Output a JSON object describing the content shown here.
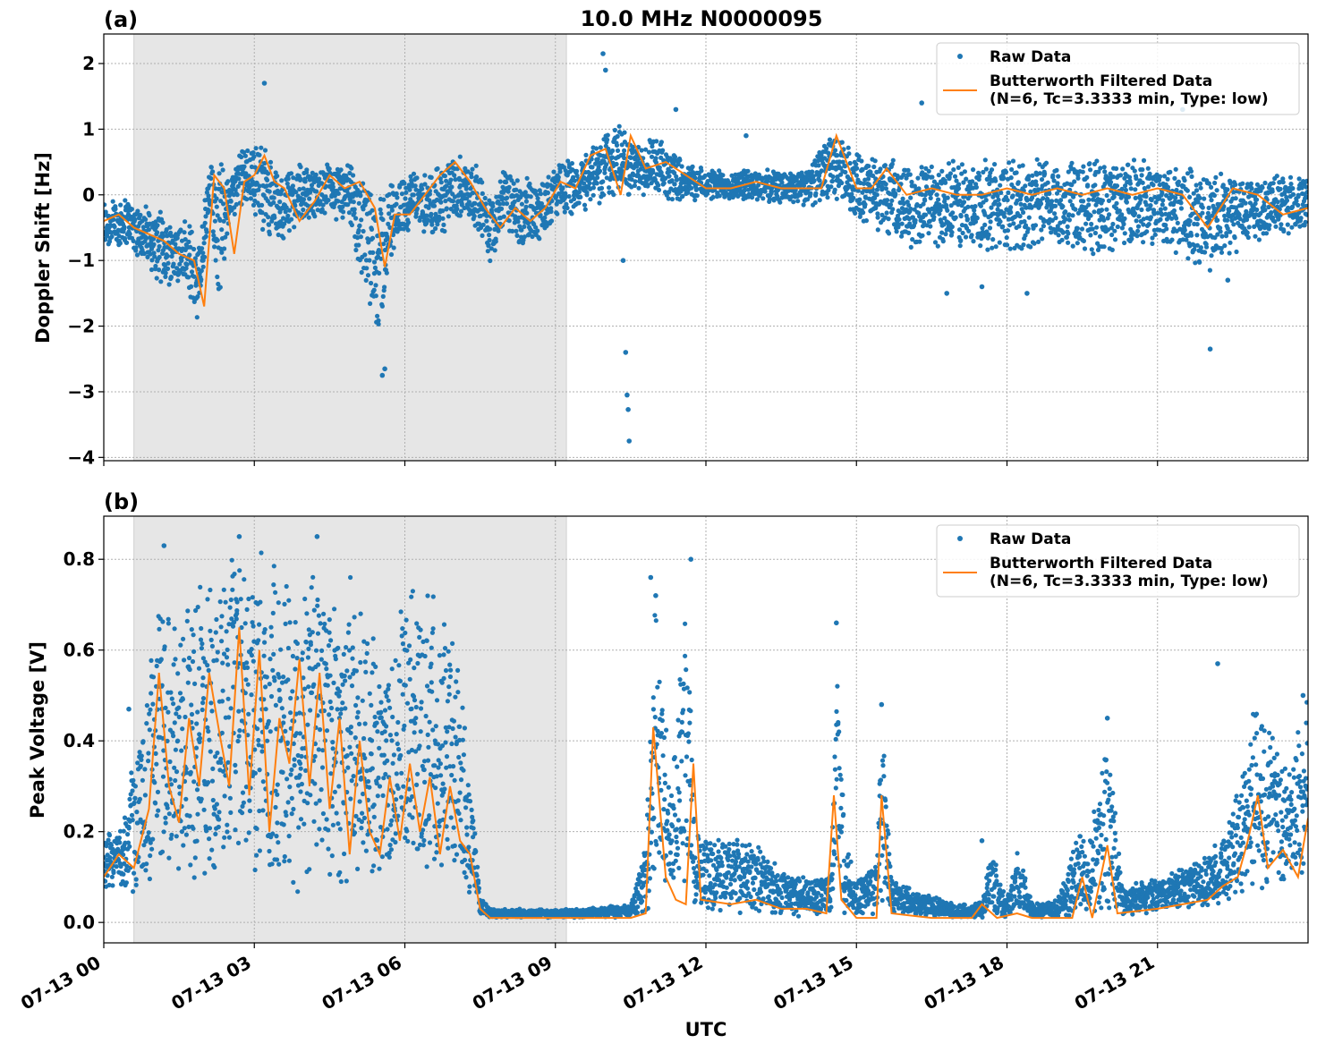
{
  "figure": {
    "title": "10.0 MHz N0000095",
    "xlabel": "UTC",
    "colors": {
      "raw": "#1f77b4",
      "filtered": "#ff7f0e",
      "shade": "#e6e6e6"
    }
  },
  "chart_data": [
    {
      "type": "scatter",
      "panel_label": "(a)",
      "title": "10.0 MHz N0000095",
      "xlabel": "",
      "ylabel": "Doppler Shift [Hz]",
      "x_unit": "hours UTC on 07-13",
      "xlim": [
        0,
        24
      ],
      "ylim": [
        -4.05,
        2.45
      ],
      "xticks": [
        0,
        3,
        6,
        9,
        12,
        15,
        18,
        21
      ],
      "xtick_labels": [
        "07-13 00",
        "07-13 03",
        "07-13 06",
        "07-13 09",
        "07-13 12",
        "07-13 15",
        "07-13 18",
        "07-13 21"
      ],
      "yticks": [
        2,
        1,
        0,
        -1,
        -2,
        -3,
        -4
      ],
      "ytick_labels": [
        "2",
        "1",
        "0",
        "−1",
        "−2",
        "−3",
        "−4"
      ],
      "shaded_region": [
        0.6,
        9.22
      ],
      "grid": true,
      "legend": {
        "position": "top-right",
        "entries": [
          {
            "label": "Raw Data",
            "kind": "marker"
          },
          {
            "label": "Butterworth Filtered Data",
            "label2": "(N=6, Tc=3.3333 min, Type: low)",
            "kind": "line"
          }
        ]
      },
      "series": [
        {
          "name": "Raw Data",
          "kind": "band",
          "x": [
            0.0,
            0.5,
            1.0,
            1.3,
            1.6,
            1.9,
            2.1,
            2.3,
            2.5,
            2.7,
            2.9,
            3.2,
            3.5,
            3.8,
            4.1,
            4.5,
            4.9,
            5.2,
            5.5,
            5.8,
            6.2,
            6.6,
            7.0,
            7.4,
            7.7,
            8.0,
            8.3,
            8.7,
            9.0,
            9.4,
            9.8,
            10.2,
            10.6,
            11.0,
            11.5,
            12.0,
            13.0,
            14.0,
            14.5,
            15.0,
            15.5,
            16.0,
            17.0,
            18.0,
            19.0,
            20.0,
            21.0,
            22.0,
            23.0,
            24.0
          ],
          "upper": [
            0.0,
            0.0,
            -0.2,
            -0.3,
            -0.3,
            -0.6,
            0.5,
            0.9,
            0.2,
            0.7,
            0.9,
            0.8,
            0.3,
            0.6,
            0.4,
            0.5,
            0.5,
            0.3,
            0.2,
            0.3,
            0.4,
            0.4,
            0.7,
            0.5,
            0.1,
            0.5,
            0.3,
            0.3,
            0.5,
            0.6,
            0.9,
            1.2,
            0.8,
            0.9,
            0.6,
            0.4,
            0.4,
            0.4,
            1.0,
            0.7,
            0.6,
            0.5,
            0.6,
            0.6,
            0.6,
            0.6,
            0.6,
            0.5,
            0.3,
            0.3
          ],
          "lower": [
            -0.9,
            -0.8,
            -1.3,
            -1.4,
            -1.5,
            -2.1,
            -0.5,
            -1.7,
            -0.4,
            -0.3,
            -0.2,
            -0.6,
            -0.8,
            -0.6,
            -0.4,
            -0.3,
            -0.6,
            -1.6,
            -2.3,
            -0.8,
            -0.5,
            -0.8,
            -0.4,
            -0.5,
            -1.1,
            -0.5,
            -0.9,
            -0.7,
            -0.4,
            -0.3,
            -0.2,
            -0.1,
            0.0,
            -0.1,
            -0.1,
            -0.1,
            -0.1,
            -0.2,
            -0.1,
            -0.4,
            -0.6,
            -0.8,
            -0.9,
            -0.9,
            -0.9,
            -0.9,
            -0.8,
            -1.3,
            -0.7,
            -0.6
          ],
          "outliers": [
            [
              3.2,
              1.7
            ],
            [
              5.55,
              -2.75
            ],
            [
              5.6,
              -2.65
            ],
            [
              9.95,
              2.15
            ],
            [
              10.0,
              1.9
            ],
            [
              10.35,
              -1.0
            ],
            [
              10.4,
              -2.4
            ],
            [
              10.43,
              -3.05
            ],
            [
              10.45,
              -3.27
            ],
            [
              10.47,
              -3.75
            ],
            [
              11.4,
              1.3
            ],
            [
              12.8,
              0.9
            ],
            [
              16.3,
              1.4
            ],
            [
              16.8,
              -1.5
            ],
            [
              17.5,
              -1.4
            ],
            [
              18.4,
              -1.5
            ],
            [
              21.5,
              1.3
            ],
            [
              22.05,
              -2.35
            ],
            [
              22.4,
              -1.3
            ]
          ]
        },
        {
          "name": "Butterworth Filtered Data",
          "kind": "line",
          "x": [
            0.0,
            0.3,
            0.6,
            0.9,
            1.2,
            1.5,
            1.8,
            2.0,
            2.2,
            2.4,
            2.6,
            2.8,
            3.0,
            3.2,
            3.4,
            3.6,
            3.9,
            4.2,
            4.5,
            4.8,
            5.1,
            5.4,
            5.6,
            5.8,
            6.1,
            6.4,
            6.7,
            7.0,
            7.3,
            7.6,
            7.9,
            8.2,
            8.5,
            8.8,
            9.1,
            9.4,
            9.7,
            10.0,
            10.3,
            10.5,
            10.8,
            11.2,
            11.6,
            12.0,
            12.5,
            13.0,
            13.5,
            14.0,
            14.3,
            14.6,
            15.0,
            15.3,
            15.6,
            16.0,
            16.5,
            17.0,
            17.5,
            18.0,
            18.5,
            19.0,
            19.5,
            20.0,
            20.5,
            21.0,
            21.5,
            22.0,
            22.5,
            23.0,
            23.5,
            24.0
          ],
          "y": [
            -0.4,
            -0.3,
            -0.5,
            -0.6,
            -0.7,
            -0.9,
            -1.0,
            -1.7,
            0.3,
            0.1,
            -0.9,
            0.2,
            0.3,
            0.6,
            0.2,
            0.1,
            -0.4,
            -0.1,
            0.3,
            0.1,
            0.2,
            -0.2,
            -1.1,
            -0.3,
            -0.3,
            0.0,
            0.3,
            0.5,
            0.2,
            -0.2,
            -0.5,
            -0.2,
            -0.4,
            -0.2,
            0.2,
            0.1,
            0.6,
            0.7,
            0.0,
            0.9,
            0.4,
            0.5,
            0.3,
            0.1,
            0.1,
            0.2,
            0.1,
            0.1,
            0.1,
            0.9,
            0.1,
            0.1,
            0.4,
            0.0,
            0.1,
            0.0,
            0.0,
            0.1,
            0.0,
            0.1,
            0.0,
            0.1,
            0.0,
            0.1,
            0.0,
            -0.5,
            0.1,
            0.0,
            -0.3,
            -0.2
          ]
        }
      ]
    },
    {
      "type": "scatter",
      "panel_label": "(b)",
      "xlabel": "UTC",
      "ylabel": "Peak Voltage [V]",
      "x_unit": "hours UTC on 07-13",
      "xlim": [
        0,
        24
      ],
      "ylim": [
        -0.045,
        0.895
      ],
      "xticks": [
        0,
        3,
        6,
        9,
        12,
        15,
        18,
        21
      ],
      "xtick_labels": [
        "07-13 00",
        "07-13 03",
        "07-13 06",
        "07-13 09",
        "07-13 12",
        "07-13 15",
        "07-13 18",
        "07-13 21"
      ],
      "yticks": [
        0.0,
        0.2,
        0.4,
        0.6,
        0.8
      ],
      "ytick_labels": [
        "0.0",
        "0.2",
        "0.4",
        "0.6",
        "0.8"
      ],
      "shaded_region": [
        0.6,
        9.22
      ],
      "grid": true,
      "legend": {
        "position": "top-right",
        "entries": [
          {
            "label": "Raw Data",
            "kind": "marker"
          },
          {
            "label": "Butterworth Filtered Data",
            "label2": "(N=6, Tc=3.3333 min, Type: low)",
            "kind": "line"
          }
        ]
      },
      "series": [
        {
          "name": "Raw Data",
          "kind": "band",
          "x": [
            0.0,
            0.4,
            0.6,
            0.8,
            1.1,
            1.4,
            1.7,
            2.0,
            2.3,
            2.6,
            3.0,
            3.4,
            3.8,
            4.2,
            4.6,
            5.0,
            5.4,
            5.7,
            6.0,
            6.4,
            6.8,
            7.1,
            7.35,
            7.5,
            7.7,
            8.5,
            9.5,
            10.5,
            10.8,
            11.0,
            11.3,
            11.6,
            11.8,
            12.3,
            13.0,
            13.5,
            14.0,
            14.5,
            14.6,
            14.8,
            15.0,
            15.4,
            15.5,
            15.7,
            16.5,
            17.0,
            17.5,
            17.7,
            18.0,
            18.2,
            18.5,
            19.0,
            19.5,
            19.6,
            20.0,
            20.3,
            21.0,
            22.0,
            22.5,
            23.0,
            23.5,
            24.0
          ],
          "upper": [
            0.2,
            0.22,
            0.4,
            0.45,
            0.82,
            0.68,
            0.77,
            0.82,
            0.78,
            0.84,
            0.83,
            0.84,
            0.8,
            0.84,
            0.82,
            0.75,
            0.62,
            0.6,
            0.77,
            0.78,
            0.76,
            0.55,
            0.28,
            0.06,
            0.03,
            0.03,
            0.03,
            0.04,
            0.18,
            0.76,
            0.3,
            0.79,
            0.2,
            0.2,
            0.18,
            0.12,
            0.1,
            0.12,
            0.65,
            0.2,
            0.1,
            0.15,
            0.48,
            0.1,
            0.06,
            0.04,
            0.05,
            0.18,
            0.05,
            0.17,
            0.05,
            0.05,
            0.24,
            0.15,
            0.45,
            0.08,
            0.1,
            0.15,
            0.25,
            0.55,
            0.35,
            0.5
          ],
          "lower": [
            0.07,
            0.08,
            0.05,
            0.07,
            0.08,
            0.12,
            0.07,
            0.09,
            0.06,
            0.1,
            0.08,
            0.06,
            0.05,
            0.06,
            0.04,
            0.07,
            0.08,
            0.07,
            0.05,
            0.09,
            0.08,
            0.06,
            0.05,
            0.02,
            0.01,
            0.01,
            0.01,
            0.01,
            0.02,
            0.05,
            0.03,
            0.03,
            0.02,
            0.02,
            0.02,
            0.01,
            0.01,
            0.01,
            0.02,
            0.01,
            0.01,
            0.01,
            0.01,
            0.01,
            0.01,
            0.01,
            0.01,
            0.01,
            0.01,
            0.01,
            0.01,
            0.01,
            0.01,
            0.01,
            0.01,
            0.01,
            0.02,
            0.03,
            0.04,
            0.06,
            0.05,
            0.08
          ],
          "outliers": [
            [
              0.5,
              0.47
            ],
            [
              1.2,
              0.83
            ],
            [
              2.7,
              0.85
            ],
            [
              4.25,
              0.85
            ],
            [
              10.9,
              0.76
            ],
            [
              11.0,
              0.72
            ],
            [
              11.7,
              0.8
            ],
            [
              14.6,
              0.66
            ],
            [
              15.5,
              0.48
            ],
            [
              17.5,
              0.18
            ],
            [
              20.0,
              0.45
            ],
            [
              22.2,
              0.57
            ],
            [
              23.9,
              0.5
            ]
          ]
        },
        {
          "name": "Butterworth Filtered Data",
          "kind": "line",
          "x": [
            0.0,
            0.3,
            0.6,
            0.9,
            1.1,
            1.3,
            1.5,
            1.7,
            1.9,
            2.1,
            2.3,
            2.5,
            2.7,
            2.9,
            3.1,
            3.3,
            3.5,
            3.7,
            3.9,
            4.1,
            4.3,
            4.5,
            4.7,
            4.9,
            5.1,
            5.3,
            5.5,
            5.7,
            5.9,
            6.1,
            6.3,
            6.5,
            6.7,
            6.9,
            7.1,
            7.3,
            7.5,
            7.7,
            8.5,
            9.5,
            10.5,
            10.8,
            10.95,
            11.2,
            11.4,
            11.6,
            11.75,
            11.9,
            12.5,
            13.0,
            13.5,
            14.0,
            14.4,
            14.55,
            14.7,
            15.0,
            15.4,
            15.5,
            15.7,
            16.5,
            17.3,
            17.5,
            17.8,
            18.2,
            18.5,
            19.3,
            19.5,
            19.7,
            20.0,
            20.2,
            21.0,
            22.0,
            22.3,
            22.6,
            22.8,
            23.0,
            23.2,
            23.5,
            23.8,
            24.0
          ],
          "y": [
            0.1,
            0.15,
            0.12,
            0.25,
            0.55,
            0.3,
            0.22,
            0.45,
            0.3,
            0.55,
            0.42,
            0.3,
            0.65,
            0.28,
            0.6,
            0.2,
            0.45,
            0.35,
            0.58,
            0.3,
            0.55,
            0.25,
            0.45,
            0.15,
            0.4,
            0.2,
            0.15,
            0.32,
            0.18,
            0.35,
            0.2,
            0.32,
            0.15,
            0.3,
            0.18,
            0.15,
            0.03,
            0.01,
            0.01,
            0.01,
            0.01,
            0.02,
            0.43,
            0.1,
            0.05,
            0.04,
            0.35,
            0.05,
            0.04,
            0.05,
            0.03,
            0.03,
            0.02,
            0.28,
            0.05,
            0.01,
            0.01,
            0.28,
            0.02,
            0.01,
            0.01,
            0.04,
            0.01,
            0.02,
            0.01,
            0.01,
            0.1,
            0.01,
            0.17,
            0.02,
            0.03,
            0.05,
            0.08,
            0.1,
            0.18,
            0.28,
            0.12,
            0.16,
            0.1,
            0.23
          ]
        }
      ]
    }
  ]
}
